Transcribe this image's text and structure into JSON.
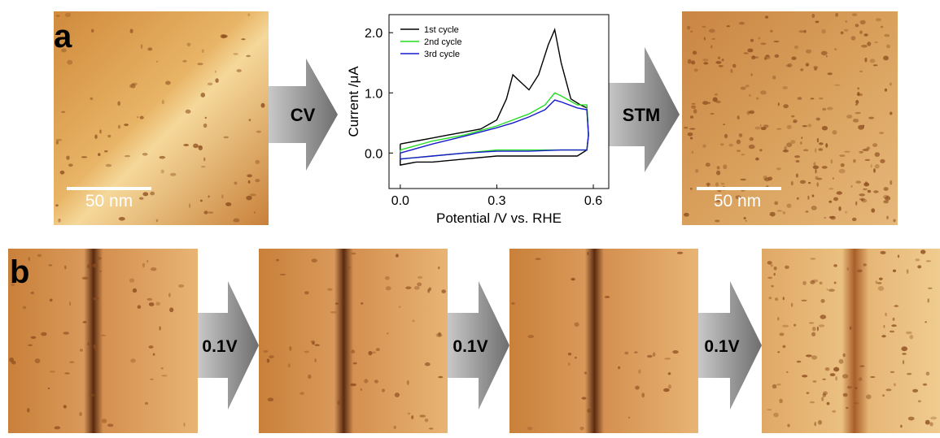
{
  "panel_labels": [
    "a",
    "b"
  ],
  "arrows": [
    "CV",
    "STM",
    "0.1V",
    "0.1V",
    "0.1V"
  ],
  "scale_bars": [
    "50 nm",
    "50 nm"
  ],
  "chart_data": {
    "type": "line",
    "x_label": "Potential /V vs. RHE",
    "y_label": "Current /μA",
    "xlim": [
      -0.035,
      0.648
    ],
    "ylim": [
      -0.59,
      2.3
    ],
    "xticks": [
      {
        "value": 0,
        "label": "0.0"
      },
      0.3,
      0.6
    ],
    "yticks": [
      {
        "value": 0,
        "label": "0.0"
      },
      {
        "value": 1,
        "label": "1.0"
      },
      {
        "value": 2,
        "label": "2.0"
      }
    ],
    "series": [
      {
        "name": "1st cycle",
        "color": "#000000",
        "x": [
          0,
          0.05,
          0.1,
          0.15,
          0.2,
          0.25,
          0.3,
          0.33,
          0.35,
          0.37,
          0.4,
          0.43,
          0.46,
          0.48,
          0.5,
          0.53,
          0.56,
          0.58,
          0.585,
          0.58,
          0.55,
          0.5,
          0.45,
          0.4,
          0.3,
          0.2,
          0.1,
          0.05,
          0,
          0
        ],
        "values": [
          0.15,
          0.2,
          0.25,
          0.3,
          0.35,
          0.4,
          0.55,
          0.9,
          1.3,
          1.2,
          1.05,
          1.3,
          1.8,
          2.05,
          1.5,
          0.9,
          0.8,
          0.75,
          0.3,
          0.05,
          -0.05,
          -0.05,
          -0.05,
          -0.05,
          -0.05,
          -0.1,
          -0.15,
          -0.15,
          -0.2,
          0.15
        ]
      },
      {
        "name": "2nd cycle",
        "color": "#22dd22",
        "x": [
          0,
          0.1,
          0.2,
          0.3,
          0.35,
          0.4,
          0.45,
          0.48,
          0.5,
          0.55,
          0.58,
          0.585,
          0.58,
          0.5,
          0.4,
          0.3,
          0.2,
          0.1,
          0,
          0
        ],
        "values": [
          0.05,
          0.2,
          0.3,
          0.45,
          0.55,
          0.65,
          0.8,
          1.0,
          0.95,
          0.8,
          0.8,
          0.3,
          0.05,
          0.05,
          0.05,
          0.05,
          0,
          -0.05,
          -0.1,
          0.05
        ]
      },
      {
        "name": "3rd cycle",
        "color": "#1a1acc",
        "x": [
          0,
          0.1,
          0.2,
          0.3,
          0.35,
          0.4,
          0.45,
          0.48,
          0.5,
          0.55,
          0.58,
          0.585,
          0.58,
          0.5,
          0.4,
          0.3,
          0.2,
          0.1,
          0,
          0
        ],
        "values": [
          0.0,
          0.15,
          0.28,
          0.42,
          0.5,
          0.6,
          0.72,
          0.88,
          0.85,
          0.75,
          0.72,
          0.3,
          0.05,
          0.05,
          0.03,
          0.03,
          0,
          -0.05,
          -0.1,
          0.0
        ]
      }
    ]
  }
}
